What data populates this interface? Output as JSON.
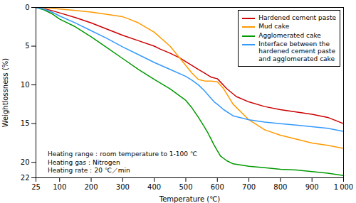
{
  "chart_data": {
    "type": "line",
    "xlabel": "Temperature (℃)",
    "ylabel": "Weightlossness (%)",
    "xlim": [
      25,
      1000
    ],
    "ylim": [
      22,
      0
    ],
    "xticks": [
      25,
      100,
      200,
      300,
      400,
      500,
      600,
      700,
      800,
      900,
      {
        "value": 1000,
        "label": "1 000"
      }
    ],
    "yticks": [
      0,
      5,
      10,
      15,
      20,
      22
    ],
    "annotations": [
      "Heating range：room temperature to 1-100 ℃",
      "Heating gas：Nitrogen",
      "Heating rate：20 ℃／min"
    ],
    "legend": "upper right",
    "series": [
      {
        "name": "Hardened cement paste",
        "color": "#cc0000",
        "x": [
          25,
          50,
          75,
          100,
          150,
          200,
          250,
          300,
          350,
          400,
          420,
          450,
          480,
          500,
          520,
          540,
          560,
          580,
          600,
          630,
          660,
          700,
          750,
          800,
          850,
          900,
          950,
          1000
        ],
        "values": [
          0,
          0.15,
          0.4,
          0.7,
          1.3,
          2.0,
          2.8,
          3.6,
          4.3,
          5.0,
          5.4,
          5.9,
          6.5,
          7.0,
          7.5,
          8.0,
          8.5,
          9.0,
          9.2,
          10.5,
          11.5,
          12.2,
          12.8,
          13.2,
          13.5,
          13.8,
          14.2,
          15.0
        ]
      },
      {
        "name": "Mud cake",
        "color": "#ff9900",
        "x": [
          25,
          50,
          75,
          100,
          150,
          200,
          250,
          300,
          320,
          350,
          400,
          450,
          500,
          520,
          540,
          560,
          580,
          600,
          620,
          650,
          700,
          750,
          800,
          850,
          900,
          950,
          1000
        ],
        "values": [
          0,
          0.05,
          0.1,
          0.2,
          0.4,
          0.6,
          0.9,
          1.2,
          1.5,
          2.0,
          3.2,
          5.0,
          7.5,
          8.5,
          9.3,
          9.5,
          9.5,
          9.6,
          10.5,
          12.5,
          14.5,
          15.8,
          16.5,
          17.0,
          17.5,
          17.8,
          18.2
        ]
      },
      {
        "name": "Agglomerated cake",
        "color": "#009900",
        "x": [
          25,
          50,
          75,
          100,
          150,
          200,
          250,
          300,
          350,
          400,
          450,
          500,
          520,
          540,
          560,
          570,
          580,
          590,
          600,
          610,
          630,
          650,
          700,
          750,
          800,
          850,
          900,
          950,
          1000
        ],
        "values": [
          0,
          0.3,
          0.8,
          1.5,
          2.5,
          3.8,
          5.2,
          6.6,
          8.0,
          9.3,
          10.5,
          12.0,
          13.0,
          14.2,
          15.5,
          16.2,
          17.0,
          17.8,
          18.5,
          19.2,
          19.8,
          20.2,
          20.5,
          20.7,
          20.9,
          21.0,
          21.2,
          21.4,
          21.7
        ]
      },
      {
        "name": "Interface between the\nhardened cement paste\nand agglomerated cake",
        "color": "#3399ff",
        "x": [
          25,
          50,
          75,
          100,
          150,
          200,
          250,
          300,
          350,
          400,
          450,
          500,
          520,
          540,
          560,
          575,
          590,
          600,
          620,
          650,
          700,
          750,
          800,
          850,
          900,
          950,
          1000
        ],
        "values": [
          0,
          0.2,
          0.6,
          1.1,
          2.0,
          3.0,
          4.0,
          5.1,
          6.1,
          7.1,
          8.0,
          8.9,
          9.4,
          10.0,
          10.8,
          11.5,
          12.2,
          12.5,
          13.2,
          14.0,
          14.5,
          14.8,
          15.0,
          15.2,
          15.4,
          15.6,
          16.0
        ]
      }
    ]
  }
}
